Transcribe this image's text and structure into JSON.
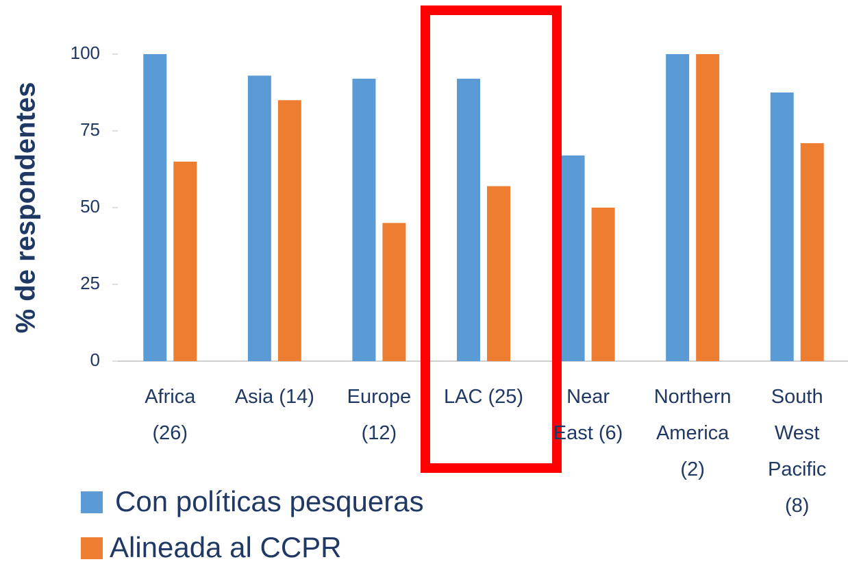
{
  "chart_data": {
    "type": "bar",
    "y_label": "% de respondentes",
    "categories": [
      "Africa (26)",
      "Asia (14)",
      "Europe (12)",
      "LAC (25)",
      "Near East (6)",
      "Northern America (2)",
      "South West Pacific (8)"
    ],
    "series": [
      {
        "name": "Con políticas pesqueras",
        "color": "#5b9bd5",
        "values": [
          100,
          93,
          92,
          92,
          67,
          100,
          87.5
        ]
      },
      {
        "name": "Alineada al CCPR",
        "color": "#ed7d31",
        "values": [
          65,
          85,
          45,
          57,
          50,
          100,
          71
        ]
      }
    ],
    "ylim": [
      0,
      100
    ],
    "yticks": [
      0,
      25,
      50,
      75,
      100
    ],
    "grid": false
  }
}
